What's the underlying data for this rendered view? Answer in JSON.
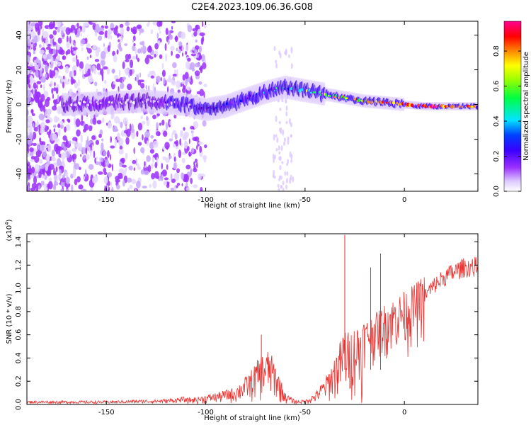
{
  "title": "C2E4.2023.109.06.36.G08",
  "colors": {
    "snr_line": "#e8302e",
    "frame": "#000000",
    "spectrogram_scale": [
      "#ffffff",
      "#dcc8ff",
      "#9b30ff",
      "#5a00e0",
      "#0000ff",
      "#00e5ff",
      "#00ff40",
      "#ffff00",
      "#ff8000",
      "#ff0000",
      "#ff00a0"
    ]
  },
  "chart_data": [
    {
      "type": "heatmap",
      "name": "spectrogram",
      "xlabel": "Height of straight line (km)",
      "ylabel": "Frequency (Hz)",
      "xlim": [
        -190,
        37
      ],
      "ylim": [
        -50,
        48
      ],
      "xticks": [
        -150,
        -100,
        -50,
        0
      ],
      "yticks": [
        -40,
        -20,
        0,
        20,
        40
      ],
      "colorbar": {
        "label": "Normalized spectral amplitude",
        "range": [
          0,
          0.97
        ],
        "ticks": [
          0.0,
          0.2,
          0.4,
          0.6,
          0.8
        ]
      },
      "ridge": {
        "x": [
          -170,
          -150,
          -130,
          -110,
          -100,
          -90,
          -80,
          -70,
          -60,
          -50,
          -40,
          -30,
          -20,
          -10,
          0,
          10,
          20,
          30,
          37
        ],
        "freq": [
          0,
          1,
          2,
          0,
          -3,
          -1,
          3,
          7,
          10,
          8,
          6,
          4,
          2,
          1,
          0,
          -1,
          -1,
          -1,
          -1
        ],
        "amplitude": [
          0.1,
          0.12,
          0.15,
          0.2,
          0.25,
          0.3,
          0.35,
          0.4,
          0.45,
          0.55,
          0.65,
          0.7,
          0.75,
          0.8,
          0.82,
          0.85,
          0.85,
          0.85,
          0.85
        ]
      }
    },
    {
      "type": "line",
      "name": "snr",
      "xlabel": "Height of straight line (km)",
      "ylabel": "SNR (10 * v/v)",
      "scale_label": "(x10",
      "scale_exponent": "4",
      "scale_close": ")",
      "xlim": [
        -190,
        37
      ],
      "ylim": [
        0,
        1.47
      ],
      "xticks": [
        -150,
        -100,
        -50,
        0
      ],
      "yticks": [
        0.0,
        0.2,
        0.4,
        0.6,
        0.8,
        1.0,
        1.2,
        1.4
      ],
      "envelope": {
        "x": [
          -190,
          -150,
          -120,
          -105,
          -95,
          -85,
          -78,
          -72,
          -68,
          -64,
          -60,
          -55,
          -50,
          -45,
          -40,
          -36,
          -32,
          -30,
          -28,
          -25,
          -20,
          -15,
          -10,
          -5,
          0,
          5,
          10,
          15,
          20,
          25,
          30,
          37
        ],
        "y": [
          0.02,
          0.02,
          0.03,
          0.05,
          0.08,
          0.12,
          0.22,
          0.35,
          0.38,
          0.25,
          0.08,
          0.03,
          0.03,
          0.08,
          0.18,
          0.3,
          0.45,
          0.55,
          0.5,
          0.55,
          0.62,
          0.68,
          0.75,
          0.8,
          0.85,
          0.9,
          0.98,
          1.08,
          1.15,
          1.2,
          1.24,
          1.25
        ]
      },
      "peaks": [
        {
          "x": -30,
          "y": 1.46
        },
        {
          "x": -72,
          "y": 0.6
        },
        {
          "x": -17,
          "y": 1.18
        },
        {
          "x": -12,
          "y": 1.3
        }
      ]
    }
  ]
}
